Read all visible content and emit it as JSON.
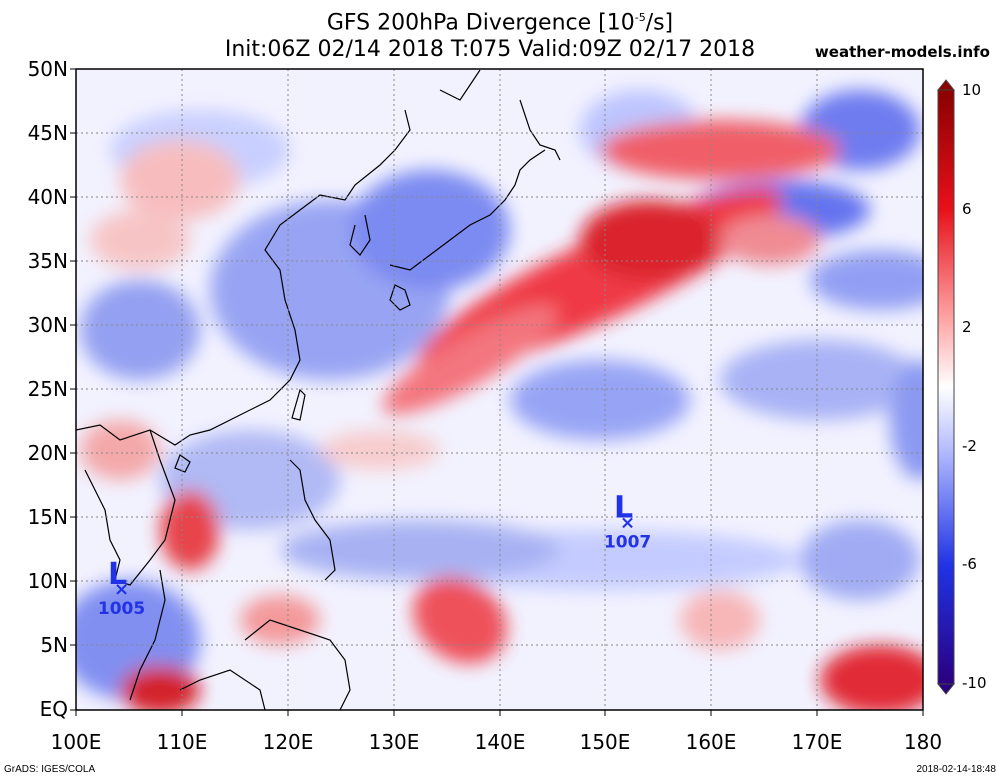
{
  "title_line1": "GFS 200hPa Divergence [10",
  "title_exp": "-5",
  "title_end": "/s]",
  "title_line2": "Init:06Z 02/14 2018 T:075 Valid:09Z 02/17 2018",
  "site": "weather-models.info",
  "footer_left": "GrADS: IGES/COLA",
  "footer_right": "2018-02-14-18:48",
  "lat_labels": [
    "50N",
    "45N",
    "40N",
    "35N",
    "30N",
    "25N",
    "20N",
    "15N",
    "10N",
    "5N",
    "EQ"
  ],
  "lon_labels": [
    "100E",
    "110E",
    "120E",
    "130E",
    "140E",
    "150E",
    "160E",
    "170E",
    "180"
  ],
  "colorbar": {
    "labels": [
      "10",
      "6",
      "2",
      "-2",
      "-6",
      "-10"
    ],
    "colors": [
      "#8b0000",
      "#c81a1a",
      "#f23a3a",
      "#ff9a9a",
      "#ffe3e3",
      "#ffffff",
      "#e0e4ff",
      "#9aa8ff",
      "#3a4df2",
      "#1a1ac8",
      "#2a0080"
    ]
  },
  "lows": [
    {
      "letter": "L",
      "value": "1005",
      "lon": 104.3,
      "lat": 9.5
    },
    {
      "letter": "L",
      "value": "1007",
      "lon": 152.1,
      "lat": 14.7
    }
  ],
  "colors": {
    "positive": "#e8101a",
    "negative": "#2033e6",
    "label_blue": "#2233e6"
  }
}
